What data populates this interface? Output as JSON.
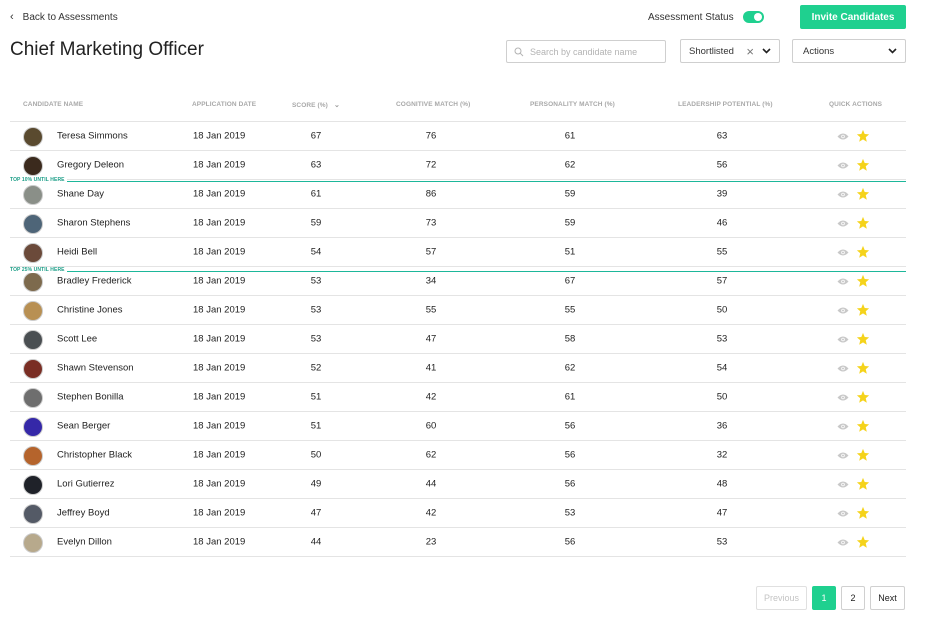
{
  "header": {
    "back_label": "Back to Assessments",
    "status_label": "Assessment Status",
    "status_on": true,
    "invite_label": "Invite Candidates",
    "title": "Chief Marketing Officer"
  },
  "toolbar": {
    "search_placeholder": "Search by candidate name",
    "filter_value": "Shortlisted",
    "actions_label": "Actions"
  },
  "table": {
    "columns": {
      "name": "CANDIDATE NAME",
      "date": "APPLICATION DATE",
      "score": "SCORE (%)",
      "cognitive": "COGNITIVE MATCH (%)",
      "personality": "PERSONALITY MATCH (%)",
      "leadership": "LEADERSHIP POTENTIAL (%)",
      "quick": "QUICK ACTIONS"
    },
    "tier_markers": [
      {
        "after_row": 2,
        "label": "TOP 10% UNTIL HERE"
      },
      {
        "after_row": 5,
        "label": "TOP 25% UNTIL HERE"
      }
    ],
    "rows": [
      {
        "name": "Teresa Simmons",
        "date": "18 Jan 2019",
        "score": "67",
        "cognitive": "76",
        "personality": "61",
        "leadership": "63",
        "avatar_color": "#5a4a2f"
      },
      {
        "name": "Gregory Deleon",
        "date": "18 Jan 2019",
        "score": "63",
        "cognitive": "72",
        "personality": "62",
        "leadership": "56",
        "avatar_color": "#3b2a1d"
      },
      {
        "name": "Shane Day",
        "date": "18 Jan 2019",
        "score": "61",
        "cognitive": "86",
        "personality": "59",
        "leadership": "39",
        "avatar_color": "#8a8f88"
      },
      {
        "name": "Sharon Stephens",
        "date": "18 Jan 2019",
        "score": "59",
        "cognitive": "73",
        "personality": "59",
        "leadership": "46",
        "avatar_color": "#4e6578"
      },
      {
        "name": "Heidi Bell",
        "date": "18 Jan 2019",
        "score": "54",
        "cognitive": "57",
        "personality": "51",
        "leadership": "55",
        "avatar_color": "#6b4a3a"
      },
      {
        "name": "Bradley Frederick",
        "date": "18 Jan 2019",
        "score": "53",
        "cognitive": "34",
        "personality": "67",
        "leadership": "57",
        "avatar_color": "#7d6a4d"
      },
      {
        "name": "Christine Jones",
        "date": "18 Jan 2019",
        "score": "53",
        "cognitive": "55",
        "personality": "55",
        "leadership": "50",
        "avatar_color": "#b89053"
      },
      {
        "name": "Scott Lee",
        "date": "18 Jan 2019",
        "score": "53",
        "cognitive": "47",
        "personality": "58",
        "leadership": "53",
        "avatar_color": "#4a4f52"
      },
      {
        "name": "Shawn Stevenson",
        "date": "18 Jan 2019",
        "score": "52",
        "cognitive": "41",
        "personality": "62",
        "leadership": "54",
        "avatar_color": "#7a2e24"
      },
      {
        "name": "Stephen Bonilla",
        "date": "18 Jan 2019",
        "score": "51",
        "cognitive": "42",
        "personality": "61",
        "leadership": "50",
        "avatar_color": "#6e6e6e"
      },
      {
        "name": "Sean Berger",
        "date": "18 Jan 2019",
        "score": "51",
        "cognitive": "60",
        "personality": "56",
        "leadership": "36",
        "avatar_color": "#3528a8"
      },
      {
        "name": "Christopher Black",
        "date": "18 Jan 2019",
        "score": "50",
        "cognitive": "62",
        "personality": "56",
        "leadership": "32",
        "avatar_color": "#b5642c"
      },
      {
        "name": "Lori Gutierrez",
        "date": "18 Jan 2019",
        "score": "49",
        "cognitive": "44",
        "personality": "56",
        "leadership": "48",
        "avatar_color": "#1f2229"
      },
      {
        "name": "Jeffrey Boyd",
        "date": "18 Jan 2019",
        "score": "47",
        "cognitive": "42",
        "personality": "53",
        "leadership": "47",
        "avatar_color": "#545a66"
      },
      {
        "name": "Evelyn Dillon",
        "date": "18 Jan 2019",
        "score": "44",
        "cognitive": "23",
        "personality": "56",
        "leadership": "53",
        "avatar_color": "#b7a98c"
      }
    ]
  },
  "pagination": {
    "prev_label": "Previous",
    "pages": [
      "1",
      "2"
    ],
    "active_page": "1",
    "next_label": "Next"
  },
  "colors": {
    "accent": "#1fd08f",
    "tier_line": "#1db79a",
    "star": "#f5d31b",
    "eye": "#c8c8c8"
  }
}
